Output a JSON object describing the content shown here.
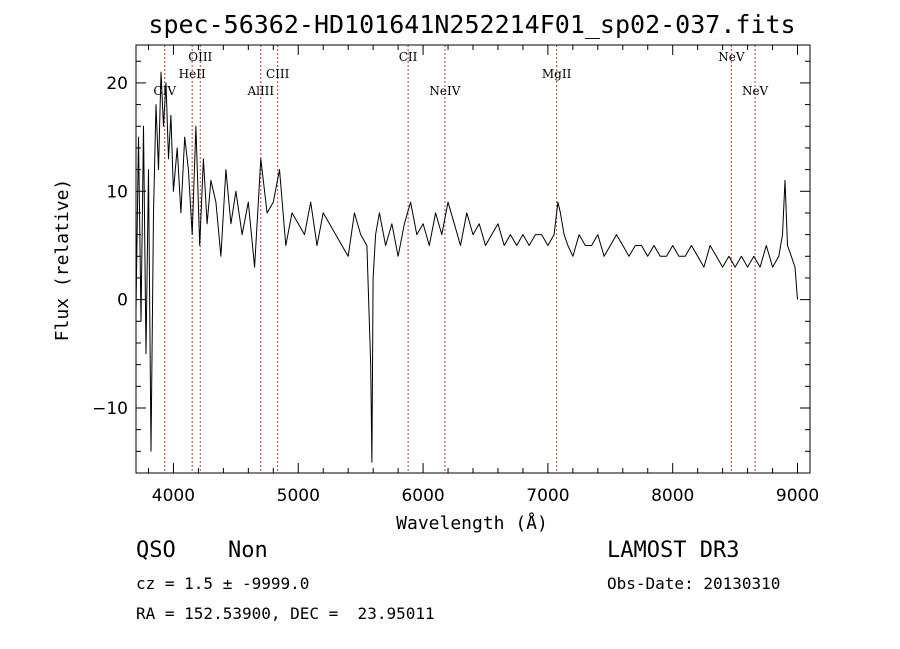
{
  "info": {
    "class": "QSO",
    "subclass": "Non",
    "survey": "LAMOST DR3",
    "cz": "cz = 1.5 ± -9999.0",
    "obs_date": "Obs-Date: 20130310",
    "coords": "RA = 152.53900, DEC =  23.95011"
  },
  "chart_data": {
    "type": "line",
    "title": "spec-56362-HD101641N252214F01_sp02-037.fits",
    "xlabel": "Wavelength (Å)",
    "ylabel": "Flux (relative)",
    "xlim": [
      3700,
      9100
    ],
    "ylim": [
      -16,
      23.5
    ],
    "xticks": [
      4000,
      5000,
      6000,
      7000,
      8000,
      9000
    ],
    "yticks": [
      -10,
      0,
      10,
      20
    ],
    "grid": false,
    "line_color": "#000000",
    "marker_color": "#c0392b",
    "emission_lines": [
      {
        "name": "CIV",
        "wavelength": 3930,
        "row": 3
      },
      {
        "name": "HeII",
        "wavelength": 4150,
        "row": 2
      },
      {
        "name": "OIII",
        "wavelength": 4215,
        "row": 1
      },
      {
        "name": "AlIII",
        "wavelength": 4700,
        "row": 3
      },
      {
        "name": "CIII",
        "wavelength": 4835,
        "row": 2
      },
      {
        "name": "CII",
        "wavelength": 5880,
        "row": 1
      },
      {
        "name": "NeIV",
        "wavelength": 6175,
        "row": 3
      },
      {
        "name": "MgII",
        "wavelength": 7070,
        "row": 2
      },
      {
        "name": "NeV",
        "wavelength": 8470,
        "row": 1
      },
      {
        "name": "NeV",
        "wavelength": 8660,
        "row": 3
      }
    ],
    "series": [
      {
        "x": [
          3700,
          3720,
          3740,
          3760,
          3780,
          3800,
          3820,
          3840,
          3860,
          3880,
          3900,
          3920,
          3940,
          3960,
          3980,
          4000,
          4030,
          4060,
          4090,
          4120,
          4150,
          4180,
          4210,
          4240,
          4270,
          4300,
          4340,
          4380,
          4420,
          4460,
          4500,
          4550,
          4600,
          4650,
          4700,
          4750,
          4800,
          4850,
          4900,
          4950,
          5000,
          5050,
          5100,
          5150,
          5200,
          5250,
          5300,
          5350,
          5400,
          5450,
          5500,
          5550,
          5580,
          5590,
          5600,
          5620,
          5650,
          5700,
          5750,
          5800,
          5850,
          5900,
          5950,
          6000,
          6050,
          6100,
          6150,
          6200,
          6250,
          6300,
          6350,
          6400,
          6450,
          6500,
          6550,
          6600,
          6650,
          6700,
          6750,
          6800,
          6850,
          6900,
          6950,
          7000,
          7050,
          7080,
          7100,
          7130,
          7160,
          7200,
          7250,
          7300,
          7350,
          7400,
          7450,
          7500,
          7550,
          7600,
          7650,
          7700,
          7750,
          7800,
          7850,
          7900,
          7950,
          8000,
          8050,
          8100,
          8150,
          8200,
          8250,
          8300,
          8350,
          8400,
          8450,
          8500,
          8550,
          8600,
          8650,
          8700,
          8750,
          8800,
          8850,
          8880,
          8900,
          8920,
          8950,
          8980,
          9000
        ],
        "y": [
          -1,
          15,
          -2,
          16,
          -5,
          12,
          -14,
          8,
          18,
          12,
          21,
          16,
          20,
          13,
          17,
          10,
          14,
          8,
          15,
          12,
          6,
          16,
          5,
          13,
          7,
          11,
          9,
          4,
          12,
          7,
          10,
          6,
          9,
          3,
          13,
          8,
          9,
          12,
          5,
          8,
          7,
          6,
          9,
          5,
          8,
          7,
          6,
          5,
          4,
          8,
          6,
          5,
          -6,
          -15,
          2,
          6,
          8,
          5,
          7,
          4,
          7,
          9,
          6,
          7,
          5,
          8,
          6,
          9,
          7,
          5,
          8,
          6,
          7,
          5,
          6,
          7,
          5,
          6,
          5,
          6,
          5,
          6,
          6,
          5,
          6,
          9,
          8,
          6,
          5,
          4,
          6,
          5,
          5,
          6,
          4,
          5,
          6,
          5,
          4,
          5,
          5,
          4,
          5,
          4,
          4,
          5,
          4,
          4,
          5,
          4,
          3,
          5,
          4,
          3,
          4,
          3,
          4,
          3,
          4,
          3,
          5,
          3,
          4,
          6,
          11,
          5,
          4,
          3,
          0
        ]
      }
    ]
  }
}
